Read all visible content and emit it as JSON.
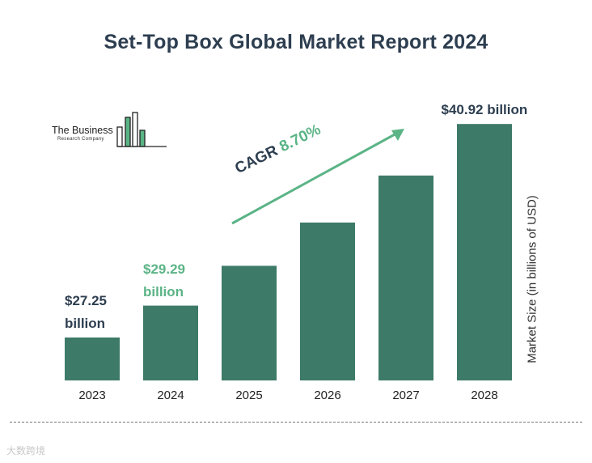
{
  "chart_data": {
    "type": "bar",
    "title": "Set-Top Box Global Market Report 2024",
    "categories": [
      "2023",
      "2024",
      "2025",
      "2026",
      "2027",
      "2028"
    ],
    "values": [
      27.25,
      29.29,
      31.84,
      34.61,
      37.62,
      40.92
    ],
    "xlabel": "",
    "ylabel": "Market Size (in billions of USD)",
    "ylim": [
      24.5,
      41.5
    ],
    "data_labels": [
      {
        "index": 0,
        "line1": "$27.25",
        "line2": "billion",
        "color": "#2d3e50"
      },
      {
        "index": 1,
        "line1": "$29.29",
        "line2": "billion",
        "color": "#5bb486"
      },
      {
        "index": 5,
        "line1": "$40.92 billion",
        "line2": "",
        "color": "#2d3e50"
      }
    ],
    "annotation": {
      "prefix": "CAGR",
      "value": "8.70%"
    },
    "bar_color": "#3d7a68",
    "arrow_color": "#5bb486"
  },
  "logo": {
    "line1": "The Business",
    "line2": "Research Company"
  },
  "watermark": "大数跨境"
}
